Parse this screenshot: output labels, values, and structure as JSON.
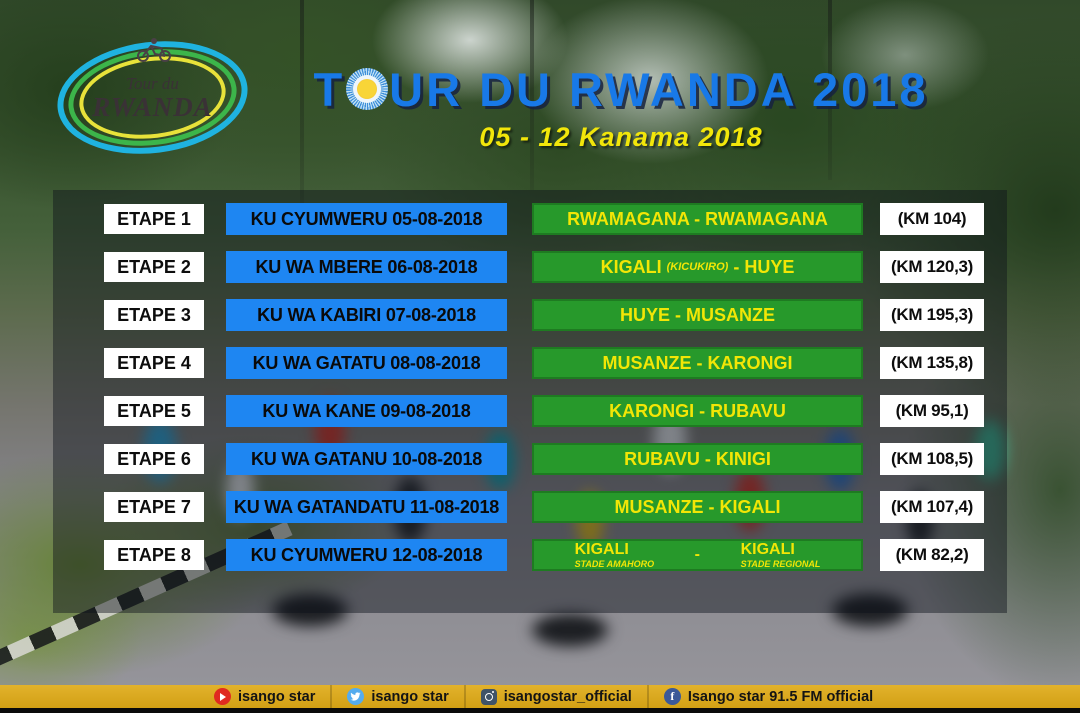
{
  "logo": {
    "line1": "Tour du",
    "line2": "RWANDA"
  },
  "header": {
    "title_before_sun": "T",
    "title_after_sun": "UR DU RWANDA 2018",
    "subtitle": "05 - 12 Kanama 2018"
  },
  "table": {
    "rows": [
      {
        "etape": "ETAPE 1",
        "date": "KU CYUMWERU 05-08-2018",
        "route": {
          "segments": [
            {
              "text": "RWAMAGANA - RWAMAGANA"
            }
          ]
        },
        "km": "(KM 104)"
      },
      {
        "etape": "ETAPE 2",
        "date": "KU WA MBERE 06-08-2018",
        "route": {
          "segments": [
            {
              "text": "KIGALI"
            },
            {
              "text": "(KICUKIRO)",
              "small": true
            },
            {
              "text": "- HUYE"
            }
          ]
        },
        "km": "(KM 120,3)"
      },
      {
        "etape": "ETAPE 3",
        "date": "KU WA KABIRI 07-08-2018",
        "route": {
          "segments": [
            {
              "text": "HUYE - MUSANZE"
            }
          ]
        },
        "km": "(KM 195,3)"
      },
      {
        "etape": "ETAPE 4",
        "date": "KU WA GATATU 08-08-2018",
        "route": {
          "segments": [
            {
              "text": "MUSANZE - KARONGI"
            }
          ]
        },
        "km": "(KM 135,8)"
      },
      {
        "etape": "ETAPE 5",
        "date": "KU WA KANE 09-08-2018",
        "route": {
          "segments": [
            {
              "text": "KARONGI - RUBAVU"
            }
          ]
        },
        "km": "(KM 95,1)"
      },
      {
        "etape": "ETAPE 6",
        "date": "KU WA GATANU 10-08-2018",
        "route": {
          "segments": [
            {
              "text": "RUBAVU - KINIGI"
            }
          ]
        },
        "km": "(KM 108,5)"
      },
      {
        "etape": "ETAPE 7",
        "date": "KU WA GATANDATU 11-08-2018",
        "route": {
          "segments": [
            {
              "text": "MUSANZE - KIGALI"
            }
          ]
        },
        "km": "(KM 107,4)"
      },
      {
        "etape": "ETAPE 8",
        "date": "KU CYUMWERU 12-08-2018",
        "route": {
          "split": {
            "left_top": "KIGALI",
            "left_sub": "STADE AMAHORO",
            "sep": "-",
            "right_top": "KIGALI",
            "right_sub": "STADE REGIONAL"
          }
        },
        "km": "(KM 82,2)"
      }
    ]
  },
  "footer": {
    "items": [
      {
        "icon": "youtube-icon",
        "label": "isango star"
      },
      {
        "icon": "twitter-icon",
        "label": "isango star"
      },
      {
        "icon": "instagram-icon",
        "label": "isangostar_official"
      },
      {
        "icon": "facebook-icon",
        "label": "Isango star 91.5 FM official"
      }
    ]
  },
  "colors": {
    "title_blue": "#1879e8",
    "subtitle_yellow": "#f2e60a",
    "date_box_blue": "#1e86f2",
    "route_box_green": "#27992b",
    "route_border_green": "#1e7b21",
    "route_text_yellow": "#f2e606",
    "box_white": "#ffffff",
    "footer_gold": "#d6a51d",
    "youtube_red": "#e02a20",
    "twitter_blue": "#55acee",
    "instagram_navy": "#3f5368",
    "facebook_blue": "#3b5998"
  }
}
